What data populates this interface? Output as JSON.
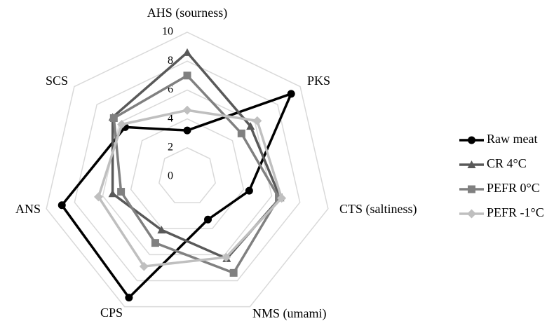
{
  "chart_data": {
    "type": "radar",
    "categories": [
      "AHS (sourness)",
      "PKS",
      "CTS (saltiness)",
      "NMS (umami)",
      "CPS",
      "ANS",
      "SCS"
    ],
    "ylim": [
      0,
      10
    ],
    "yticks": [
      0,
      2,
      4,
      6,
      8,
      10
    ],
    "grid": true,
    "legend": "right",
    "series": [
      {
        "name": "Raw meat",
        "color": "#000000",
        "marker": "circle",
        "values": [
          3.2,
          9.2,
          4.4,
          3.3,
          9.3,
          8.9,
          5.5
        ]
      },
      {
        "name": "CR 4°C",
        "color": "#595959",
        "marker": "triangle",
        "values": [
          8.6,
          5.6,
          6.6,
          6.3,
          4.1,
          5.3,
          6.6
        ]
      },
      {
        "name": "PEFR 0°C",
        "color": "#808080",
        "marker": "square",
        "values": [
          7.0,
          4.8,
          6.5,
          7.4,
          5.1,
          4.7,
          6.5
        ]
      },
      {
        "name": "PEFR -1°C",
        "color": "#bfbfbf",
        "marker": "diamond",
        "values": [
          4.6,
          6.2,
          6.7,
          6.2,
          6.9,
          6.3,
          5.8
        ]
      }
    ]
  }
}
